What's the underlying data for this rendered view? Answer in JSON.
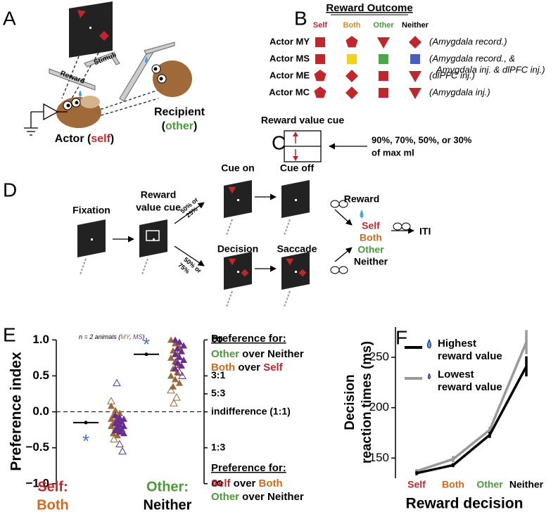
{
  "panel_labels": [
    "A",
    "B",
    "C",
    "D",
    "E",
    "F"
  ],
  "panel_a": {
    "reward": "Reward",
    "stimuli": "Stimuli",
    "recipient": "Recipient",
    "recipient_role": [
      {
        "text": "(",
        "color": "#000000"
      },
      {
        "text": "other",
        "color": "#4a9a3b"
      },
      {
        "text": ")",
        "color": "#000000"
      }
    ],
    "actor": [
      {
        "text": "Actor (",
        "color": "#000000"
      },
      {
        "text": "self",
        "color": "#c0272d"
      },
      {
        "text": ")",
        "color": "#000000"
      }
    ]
  },
  "panel_b": {
    "title": "Reward Outcome",
    "columns": [
      {
        "text": "Self",
        "color": "#c0272d"
      },
      {
        "text": "Both",
        "color": "#d98a2b"
      },
      {
        "text": "Other",
        "color": "#4a9a3b"
      },
      {
        "text": "Neither",
        "color": "#000000"
      }
    ],
    "rows": [
      {
        "label": "Actor MY",
        "notes": [
          "(Amygdala record.)"
        ]
      },
      {
        "label": "Actor MS",
        "notes": [
          "(Amygdala record., &",
          "Amygdala inj. & dlPFC inj.)"
        ]
      },
      {
        "label": "Actor ME",
        "notes": [
          "(dlPFC inj.)"
        ]
      },
      {
        "label": "Actor MC",
        "notes": [
          "(Amygdala inj.)"
        ]
      }
    ]
  },
  "panel_c": {
    "title": "Reward value cue",
    "caption": [
      "90%, 70%, 50%, or 30%",
      "of max ml"
    ]
  },
  "panel_d": {
    "fixation": "Fixation",
    "cue": [
      "Reward",
      "value cue"
    ],
    "cue_on": "Cue on",
    "cue_off": "Cue off",
    "decision": "Decision",
    "saccade": "Saccade",
    "reward": "Reward",
    "outcomes": [
      {
        "text": "Self",
        "color": "#c0272d"
      },
      {
        "text": "Both",
        "color": "#d2691e"
      },
      {
        "text": "Other",
        "color": "#4a9a3b"
      },
      {
        "text": "Neither",
        "color": "#000000"
      }
    ],
    "iti": "ITI",
    "branch_upper": [
      "50% or",
      "25%"
    ],
    "branch_lower": [
      "50% or",
      "75%"
    ]
  },
  "chart_data": [
    {
      "type": "strip",
      "y_label": "Preference index",
      "note": [
        "n = 2 animals (",
        ", ",
        ")"
      ],
      "categories": [
        [
          {
            "text": "Self:",
            "color": "#c0272d"
          },
          {
            "text": "Both",
            "color": "#d2691e"
          }
        ],
        [
          {
            "text": "Other:",
            "color": "#4a9a3b"
          },
          {
            "text": "Neither",
            "color": "#000000"
          }
        ]
      ],
      "ylim": [
        -1.1,
        1.15
      ],
      "yticks": [
        {
          "value": -1,
          "label": "−1.0"
        },
        {
          "value": -0.5,
          "label": "−0.5"
        },
        {
          "value": 0,
          "label": "0.0"
        },
        0.5,
        {
          "value": 1,
          "label": "1.0"
        }
      ],
      "y2ticks": [
        {
          "value": 1,
          "label": "∞"
        },
        {
          "value": 0.5,
          "label": "3:1"
        },
        {
          "value": 0.25,
          "label": "5:3"
        },
        {
          "value": 0,
          "label": "indifference (1:1)"
        },
        {
          "value": -0.5,
          "label": "1:3"
        },
        {
          "value": -1,
          "label": "∞"
        }
      ],
      "means": [
        -0.15,
        0.8
      ],
      "significance": [
        "*",
        "*"
      ],
      "significance_color": "#4a6fc0",
      "series": [
        {
          "name": "MY",
          "color": "#9b6a3a",
          "values": [
            [
              0.08,
              0.02,
              -0.02,
              -0.05,
              -0.08,
              -0.1,
              -0.12,
              -0.14,
              -0.16,
              -0.18,
              -0.2,
              -0.23,
              -0.26,
              -0.3,
              -0.33
            ],
            [
              1.0,
              0.95,
              0.9,
              0.85,
              0.8,
              0.75,
              0.7,
              0.65,
              0.6,
              0.55,
              0.5,
              0.45,
              0.4,
              0.35
            ]
          ],
          "open_values": [
            [
              0.15,
              -0.38
            ],
            [
              0.3,
              0.12,
              0.2
            ]
          ]
        },
        {
          "name": "MS",
          "color": "#6a2c91",
          "values": [
            [
              -0.05,
              -0.08,
              -0.1,
              -0.12,
              -0.14,
              -0.16,
              -0.18,
              -0.2,
              -0.22,
              -0.24,
              -0.26,
              -0.28,
              -0.3
            ],
            [
              1.0,
              0.97,
              0.92,
              0.88,
              0.84,
              0.8,
              0.76,
              0.72,
              0.68,
              0.64,
              0.6
            ]
          ],
          "open_values": [
            [
              0.4,
              -0.45,
              -0.55
            ],
            [
              0.7,
              0.55,
              0.5
            ]
          ]
        }
      ],
      "preference_top": {
        "title": "Preference for:",
        "lines": [
          [
            {
              "text": "Other",
              "color": "#4a9a3b"
            },
            {
              "text": " over Neither",
              "color": "#000000"
            }
          ],
          [
            {
              "text": "Both",
              "color": "#d2691e"
            },
            {
              "text": " over ",
              "color": "#000000"
            },
            {
              "text": "Self",
              "color": "#c0272d"
            }
          ]
        ]
      },
      "preference_bottom": {
        "title": "Preference for:",
        "lines": [
          [
            {
              "text": "Self",
              "color": "#c0272d"
            },
            {
              "text": " over ",
              "color": "#000000"
            },
            {
              "text": "Both",
              "color": "#d2691e"
            }
          ],
          [
            {
              "text": "Other",
              "color": "#4a9a3b"
            },
            {
              "text": " over Neither",
              "color": "#000000"
            }
          ]
        ]
      }
    },
    {
      "type": "line",
      "x_label": "Reward decision",
      "y_label": [
        "Decision",
        "reaction times (ms)"
      ],
      "categories": [
        "Self",
        "Both",
        "Other",
        "Neither"
      ],
      "category_colors": [
        "#c0272d",
        "#d2691e",
        "#4a9a3b",
        "#000000"
      ],
      "ylim": [
        130,
        280
      ],
      "yticks": [
        150,
        200,
        250
      ],
      "series": [
        {
          "name": "Highest reward value",
          "color": "#000000",
          "values": [
            135,
            143,
            173,
            241
          ],
          "errors": [
            2,
            2,
            3,
            10
          ]
        },
        {
          "name": "Lowest reward value",
          "color": "#999999",
          "values": [
            137,
            149,
            178,
            265
          ],
          "errors": [
            2,
            3,
            3,
            12
          ]
        }
      ]
    }
  ]
}
